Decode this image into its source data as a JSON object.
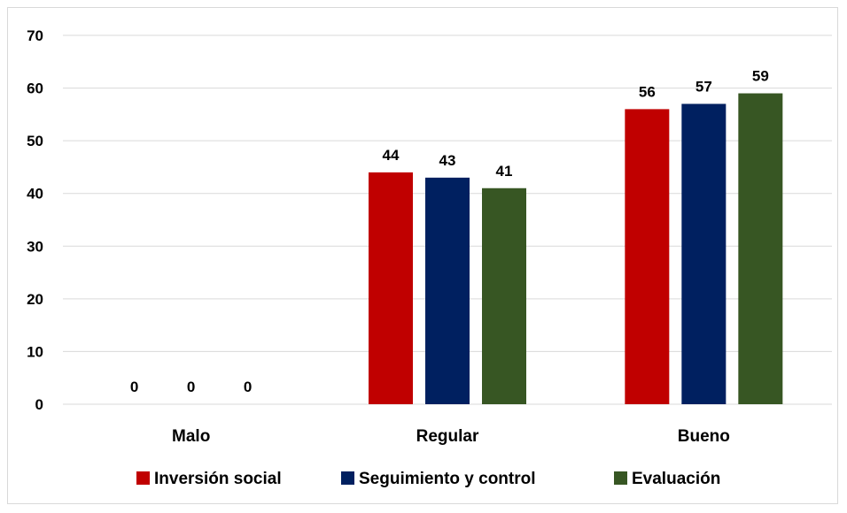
{
  "chart_data": {
    "type": "bar",
    "categories": [
      "Malo",
      "Regular",
      "Bueno"
    ],
    "series": [
      {
        "name": "Inversión social",
        "values": [
          0,
          44,
          56
        ],
        "color": "#c00000"
      },
      {
        "name": "Seguimiento y control",
        "values": [
          0,
          43,
          57
        ],
        "color": "#002060"
      },
      {
        "name": "Evaluación",
        "values": [
          0,
          41,
          59
        ],
        "color": "#375623"
      }
    ],
    "ylim": [
      0,
      70
    ],
    "yticks": [
      0,
      10,
      20,
      30,
      40,
      50,
      60,
      70
    ],
    "grid": true,
    "legend_position": "bottom",
    "data_labels": true
  }
}
